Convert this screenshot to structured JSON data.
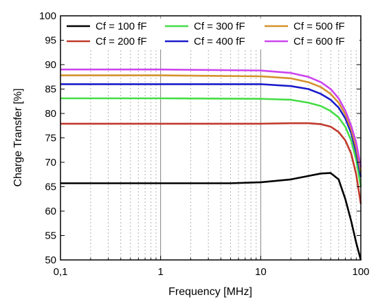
{
  "chart_data": {
    "type": "line",
    "title": "",
    "xlabel": "Frequency [MHz]",
    "ylabel": "Charge Transfer [%]",
    "xscale": "log",
    "xlim": [
      0.1,
      100
    ],
    "ylim": [
      50,
      100
    ],
    "x_ticks": [
      {
        "value": 0.1,
        "label": "0,1"
      },
      {
        "value": 1,
        "label": "1"
      },
      {
        "value": 10,
        "label": "10"
      },
      {
        "value": 100,
        "label": "100"
      }
    ],
    "y_ticks": [
      50,
      55,
      60,
      65,
      70,
      75,
      80,
      85,
      90,
      95,
      100
    ],
    "grid": "vertical major and minor (log decades)",
    "legend_position": "top (inside plot, 3 columns)",
    "series": [
      {
        "name": "Cf = 100 fF",
        "color": "#000000",
        "x": [
          0.1,
          1,
          5,
          10,
          20,
          30,
          40,
          50,
          60,
          70,
          80,
          90,
          100
        ],
        "y": [
          65.7,
          65.7,
          65.7,
          65.9,
          66.5,
          67.2,
          67.7,
          67.8,
          66.5,
          62.5,
          58,
          53.5,
          50
        ]
      },
      {
        "name": "Cf = 200 fF",
        "color": "#c0392b",
        "x": [
          0.1,
          1,
          10,
          20,
          30,
          40,
          50,
          60,
          70,
          80,
          90,
          100
        ],
        "y": [
          77.9,
          77.9,
          77.9,
          78.0,
          78.0,
          77.8,
          77.3,
          76.2,
          74.5,
          71.8,
          67.5,
          61.5
        ]
      },
      {
        "name": "Cf = 300 fF",
        "color": "#44dd44",
        "x": [
          0.1,
          1,
          10,
          20,
          30,
          40,
          50,
          60,
          70,
          80,
          90,
          100
        ],
        "y": [
          83.1,
          83.1,
          83.0,
          82.8,
          82.2,
          81.5,
          80.5,
          79.2,
          77.3,
          74.5,
          70.5,
          65
        ]
      },
      {
        "name": "Cf = 400 fF",
        "color": "#1a1acc",
        "x": [
          0.1,
          1,
          10,
          20,
          30,
          40,
          50,
          60,
          70,
          80,
          90,
          100
        ],
        "y": [
          86.0,
          86.0,
          86.0,
          85.6,
          85.0,
          84.0,
          82.8,
          81.2,
          79.0,
          76.0,
          72.0,
          67
        ]
      },
      {
        "name": "Cf = 500 fF",
        "color": "#d4912b",
        "x": [
          0.1,
          1,
          10,
          20,
          30,
          40,
          50,
          60,
          70,
          80,
          90,
          100
        ],
        "y": [
          87.8,
          87.8,
          87.6,
          87.2,
          86.4,
          85.4,
          84.0,
          82.2,
          79.8,
          76.8,
          73.0,
          68
        ]
      },
      {
        "name": "Cf = 600 fF",
        "color": "#cc44ee",
        "x": [
          0.1,
          1,
          10,
          20,
          30,
          40,
          50,
          60,
          70,
          80,
          90,
          100
        ],
        "y": [
          89.0,
          89.0,
          88.8,
          88.3,
          87.5,
          86.4,
          85.0,
          83.1,
          80.6,
          77.5,
          74.0,
          69
        ]
      }
    ]
  }
}
